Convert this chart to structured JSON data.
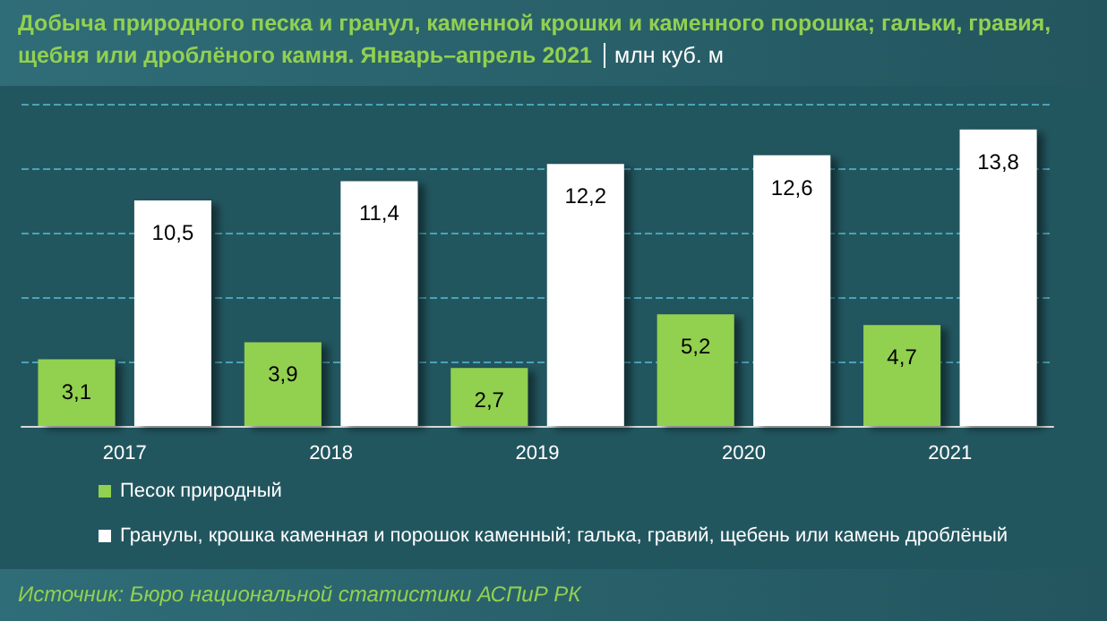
{
  "chart_data": {
    "type": "bar",
    "title": "Добыча природного песка и гранул, каменной крошки и каменного порошка; гальки, гравия, щебня или дроблёного камня. Январь–апрель 2021",
    "subtitle": "млн куб. м",
    "categories": [
      "2017",
      "2018",
      "2019",
      "2020",
      "2021"
    ],
    "series": [
      {
        "name": "Песок природный",
        "color": "#92d050",
        "values": [
          3.1,
          3.9,
          2.7,
          5.2,
          4.7
        ],
        "value_labels": [
          "3,1",
          "3,9",
          "2,7",
          "5,2",
          "4,7"
        ]
      },
      {
        "name": "Гранулы, крошка каменная и порошок каменный; галька, гравий, щебень или камень дроблёный",
        "color": "#ffffff",
        "values": [
          10.5,
          11.4,
          12.2,
          12.6,
          13.8
        ],
        "value_labels": [
          "10,5",
          "11,4",
          "12,2",
          "12,6",
          "13,8"
        ]
      }
    ],
    "ylim": [
      0,
      15
    ],
    "yticks": [
      {
        "value": 0,
        "label": null
      },
      {
        "value": 3,
        "label": null
      },
      {
        "value": 6,
        "label": null
      },
      {
        "value": 9,
        "label": null
      },
      {
        "value": 12,
        "label": null
      },
      {
        "value": 15,
        "label": null
      }
    ],
    "tick_labels": "x",
    "grid": "y",
    "legend": "bottom",
    "annotations": [
      "Источник: Бюро национальной статистики АСПиР РК"
    ]
  }
}
